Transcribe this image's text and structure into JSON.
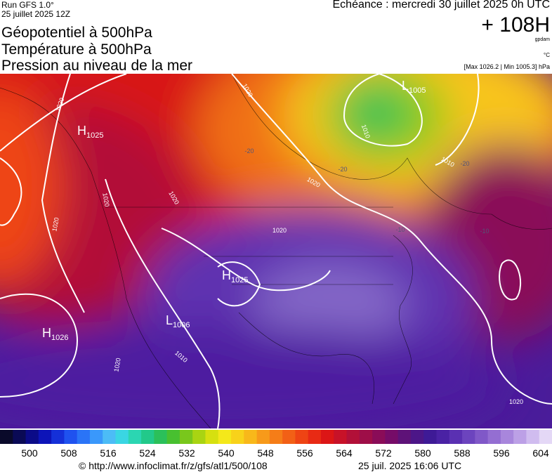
{
  "header": {
    "run": "Run GFS 1.0°",
    "run_date": "25 juillet 2025 12Z",
    "titles": [
      "Géopotentiel à 500hPa",
      "Température à 500hPa",
      "Pression au niveau de la mer"
    ],
    "valid": "Echéance : mercredi 30 juillet 2025 0h UTC",
    "lead": "+ 108H",
    "unit": "gpdam",
    "temp_unit": "°C",
    "range": "[Max 1026.2 | Min 1005.3] hPa"
  },
  "map": {
    "centers": [
      {
        "letter": "H",
        "value": "1025"
      },
      {
        "letter": "H",
        "value": "1025"
      },
      {
        "letter": "L",
        "value": "1006"
      },
      {
        "letter": "H",
        "value": "1026"
      },
      {
        "letter": "L",
        "value": "1005"
      }
    ],
    "isobar_labels": [
      "1020",
      "1020",
      "1020",
      "1020",
      "1020",
      "1020",
      "1020",
      "1020",
      "1020",
      "1010",
      "1010",
      "1010"
    ],
    "temperature_labels": [
      "-20",
      "-20",
      "-20",
      "-10",
      "-10"
    ]
  },
  "colorbar": {
    "ticks": [
      500,
      508,
      516,
      524,
      532,
      540,
      548,
      556,
      564,
      572,
      580,
      588,
      596,
      604
    ],
    "colors": [
      "#0a0a2a",
      "#0a0a55",
      "#0b0b88",
      "#0d14b8",
      "#1530d8",
      "#1f52ef",
      "#2a74f7",
      "#3a98fb",
      "#4cbcf6",
      "#3ad6e3",
      "#2bd6b2",
      "#22c98a",
      "#2bc05a",
      "#48c030",
      "#79c71c",
      "#a9d412",
      "#d6e010",
      "#f4e81a",
      "#f8d21a",
      "#f8b81a",
      "#f79a1a",
      "#f57d18",
      "#f26016",
      "#ee4414",
      "#e82a14",
      "#dc1616",
      "#c81228",
      "#b21038",
      "#9e0e48",
      "#8a0c58",
      "#760c68",
      "#5e1278",
      "#4c1688",
      "#3e1a96",
      "#4a22a4",
      "#5a30b2",
      "#6c44be",
      "#8058c8",
      "#946ed2",
      "#a886dc",
      "#bca0e6",
      "#d0bcef",
      "#e4d8f6"
    ]
  },
  "footer": {
    "url": "© http://www.infoclimat.fr/z/gfs/atl1/500/108",
    "timestamp": "25 juil. 2025 16:06 UTC"
  }
}
